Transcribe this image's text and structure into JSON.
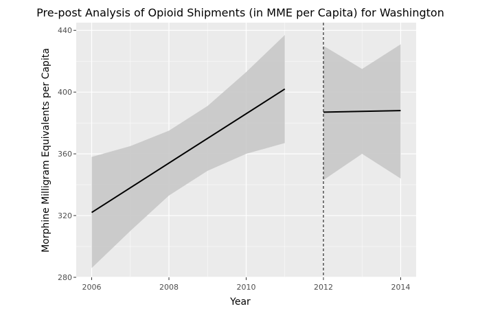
{
  "chart_data": {
    "type": "line",
    "title": "Pre-post Analysis of Opioid Shipments (in MME per Capita) for Washington",
    "xlabel": "Year",
    "ylabel": "Morphine Milligram Equivalents per Capita",
    "xlim": [
      2005.6,
      2014.4
    ],
    "ylim": [
      280,
      445
    ],
    "x_ticks": [
      2006,
      2008,
      2010,
      2012,
      2014
    ],
    "y_ticks": [
      280,
      320,
      360,
      400,
      440
    ],
    "grid": true,
    "legend": "none",
    "policy_line_x": 2012,
    "series": [
      {
        "segment": "pre",
        "x": [
          2006,
          2011
        ],
        "y": [
          322,
          402
        ],
        "ci_x": [
          2006,
          2007,
          2008,
          2009,
          2010,
          2011
        ],
        "ci_lower": [
          286,
          310,
          333,
          349,
          360,
          367
        ],
        "ci_upper": [
          358,
          365,
          375,
          391,
          413,
          437
        ]
      },
      {
        "segment": "post",
        "x": [
          2012,
          2014
        ],
        "y": [
          387,
          388
        ],
        "ci_x": [
          2012,
          2013,
          2014
        ],
        "ci_lower": [
          343,
          360,
          344
        ],
        "ci_upper": [
          430,
          415,
          431
        ]
      }
    ],
    "colors": {
      "panel": "#ebebeb",
      "grid_major": "#ffffff",
      "ribbon": "#c8c8c8",
      "line": "#000000",
      "vline": "#000000"
    }
  }
}
